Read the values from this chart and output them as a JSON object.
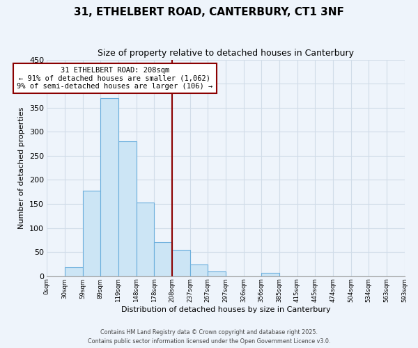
{
  "title": "31, ETHELBERT ROAD, CANTERBURY, CT1 3NF",
  "subtitle": "Size of property relative to detached houses in Canterbury",
  "xlabel": "Distribution of detached houses by size in Canterbury",
  "ylabel": "Number of detached properties",
  "bar_values": [
    0,
    18,
    177,
    370,
    280,
    153,
    70,
    55,
    25,
    10,
    0,
    0,
    7,
    0,
    0,
    0,
    0,
    0,
    0,
    0
  ],
  "bar_labels": [
    "0sqm",
    "30sqm",
    "59sqm",
    "89sqm",
    "119sqm",
    "148sqm",
    "178sqm",
    "208sqm",
    "237sqm",
    "267sqm",
    "297sqm",
    "326sqm",
    "356sqm",
    "385sqm",
    "415sqm",
    "445sqm",
    "474sqm",
    "504sqm",
    "534sqm",
    "563sqm",
    "593sqm"
  ],
  "bar_color": "#cce5f5",
  "bar_edge_color": "#6aaedc",
  "vline_color": "#8b0000",
  "annotation_text": "31 ETHELBERT ROAD: 208sqm\n← 91% of detached houses are smaller (1,062)\n9% of semi-detached houses are larger (106) →",
  "annotation_box_color": "#ffffff",
  "annotation_box_edge": "#8b0000",
  "ylim": [
    0,
    450
  ],
  "yticks": [
    0,
    50,
    100,
    150,
    200,
    250,
    300,
    350,
    400,
    450
  ],
  "footer1": "Contains HM Land Registry data © Crown copyright and database right 2025.",
  "footer2": "Contains public sector information licensed under the Open Government Licence v3.0.",
  "bg_color": "#eef4fb",
  "grid_color": "#d0dce8"
}
